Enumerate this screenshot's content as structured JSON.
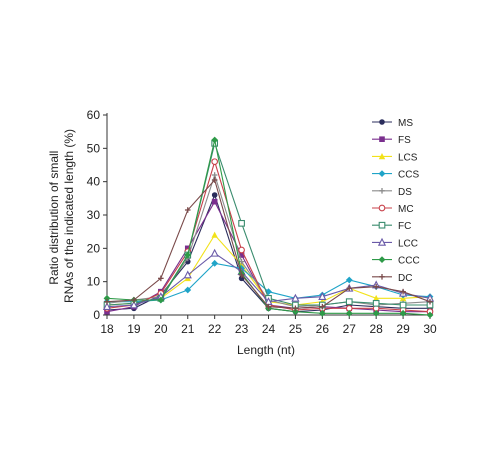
{
  "chart_data": {
    "type": "line",
    "title": "",
    "xlabel": "Length (nt)",
    "ylabel_lines": [
      "Ratio distribution of small",
      "RNAs of the indicated length (%)"
    ],
    "x": [
      18,
      19,
      20,
      21,
      22,
      23,
      24,
      25,
      26,
      27,
      28,
      29,
      30
    ],
    "xlim": [
      18,
      30
    ],
    "ylim": [
      0,
      60
    ],
    "yticks": [
      0,
      10,
      20,
      30,
      40,
      50,
      60
    ],
    "grid": false,
    "legend_position": "right",
    "series": [
      {
        "name": "MS",
        "color": "#2b2d5c",
        "marker": "circle",
        "values": [
          1.5,
          2.0,
          6.0,
          16.0,
          36.0,
          11.0,
          2.0,
          1.0,
          1.5,
          3.0,
          2.5,
          2.0,
          2.0
        ]
      },
      {
        "name": "FS",
        "color": "#7a2f8e",
        "marker": "square",
        "values": [
          1.0,
          2.5,
          7.0,
          20.0,
          34.0,
          18.0,
          3.0,
          2.0,
          2.5,
          2.0,
          1.5,
          1.0,
          1.0
        ]
      },
      {
        "name": "LCS",
        "color": "#f2e21a",
        "marker": "triangle",
        "values": [
          3.0,
          3.5,
          5.0,
          11.0,
          24.0,
          15.0,
          4.0,
          3.0,
          4.0,
          8.0,
          5.0,
          5.0,
          5.5
        ]
      },
      {
        "name": "CCS",
        "color": "#1fa4c8",
        "marker": "diamond",
        "values": [
          4.0,
          4.0,
          4.5,
          7.5,
          15.5,
          14.0,
          7.0,
          5.0,
          6.0,
          10.5,
          8.5,
          6.0,
          5.5
        ]
      },
      {
        "name": "DS",
        "color": "#8c8c8c",
        "marker": "plus",
        "values": [
          3.5,
          4.5,
          5.5,
          17.0,
          42.0,
          16.0,
          4.5,
          2.5,
          3.0,
          4.0,
          3.0,
          3.5,
          4.0
        ]
      },
      {
        "name": "MC",
        "color": "#c8404a",
        "marker": "circle-open",
        "values": [
          2.0,
          3.0,
          6.5,
          19.0,
          46.0,
          19.5,
          3.0,
          1.5,
          2.0,
          2.0,
          2.0,
          1.5,
          1.0
        ]
      },
      {
        "name": "FC",
        "color": "#3a8c6e",
        "marker": "square-open",
        "values": [
          3.0,
          3.5,
          5.0,
          18.0,
          51.5,
          27.5,
          5.0,
          3.0,
          3.0,
          4.0,
          3.5,
          3.0,
          3.0
        ]
      },
      {
        "name": "LCC",
        "color": "#6a5aa8",
        "marker": "triangle-open",
        "values": [
          2.5,
          3.0,
          5.5,
          12.0,
          18.5,
          13.0,
          4.0,
          5.0,
          5.5,
          8.0,
          9.0,
          6.5,
          5.0
        ]
      },
      {
        "name": "CCC",
        "color": "#2e9a48",
        "marker": "diamond",
        "values": [
          5.0,
          4.5,
          4.5,
          18.0,
          52.5,
          12.5,
          2.0,
          1.0,
          0.5,
          0.5,
          0.5,
          0.5,
          0.0
        ]
      },
      {
        "name": "DC",
        "color": "#7a4a4a",
        "marker": "plus",
        "values": [
          4.0,
          4.5,
          11.0,
          31.5,
          40.5,
          12.0,
          2.5,
          2.0,
          2.5,
          8.0,
          8.5,
          7.0,
          4.0
        ]
      }
    ]
  }
}
